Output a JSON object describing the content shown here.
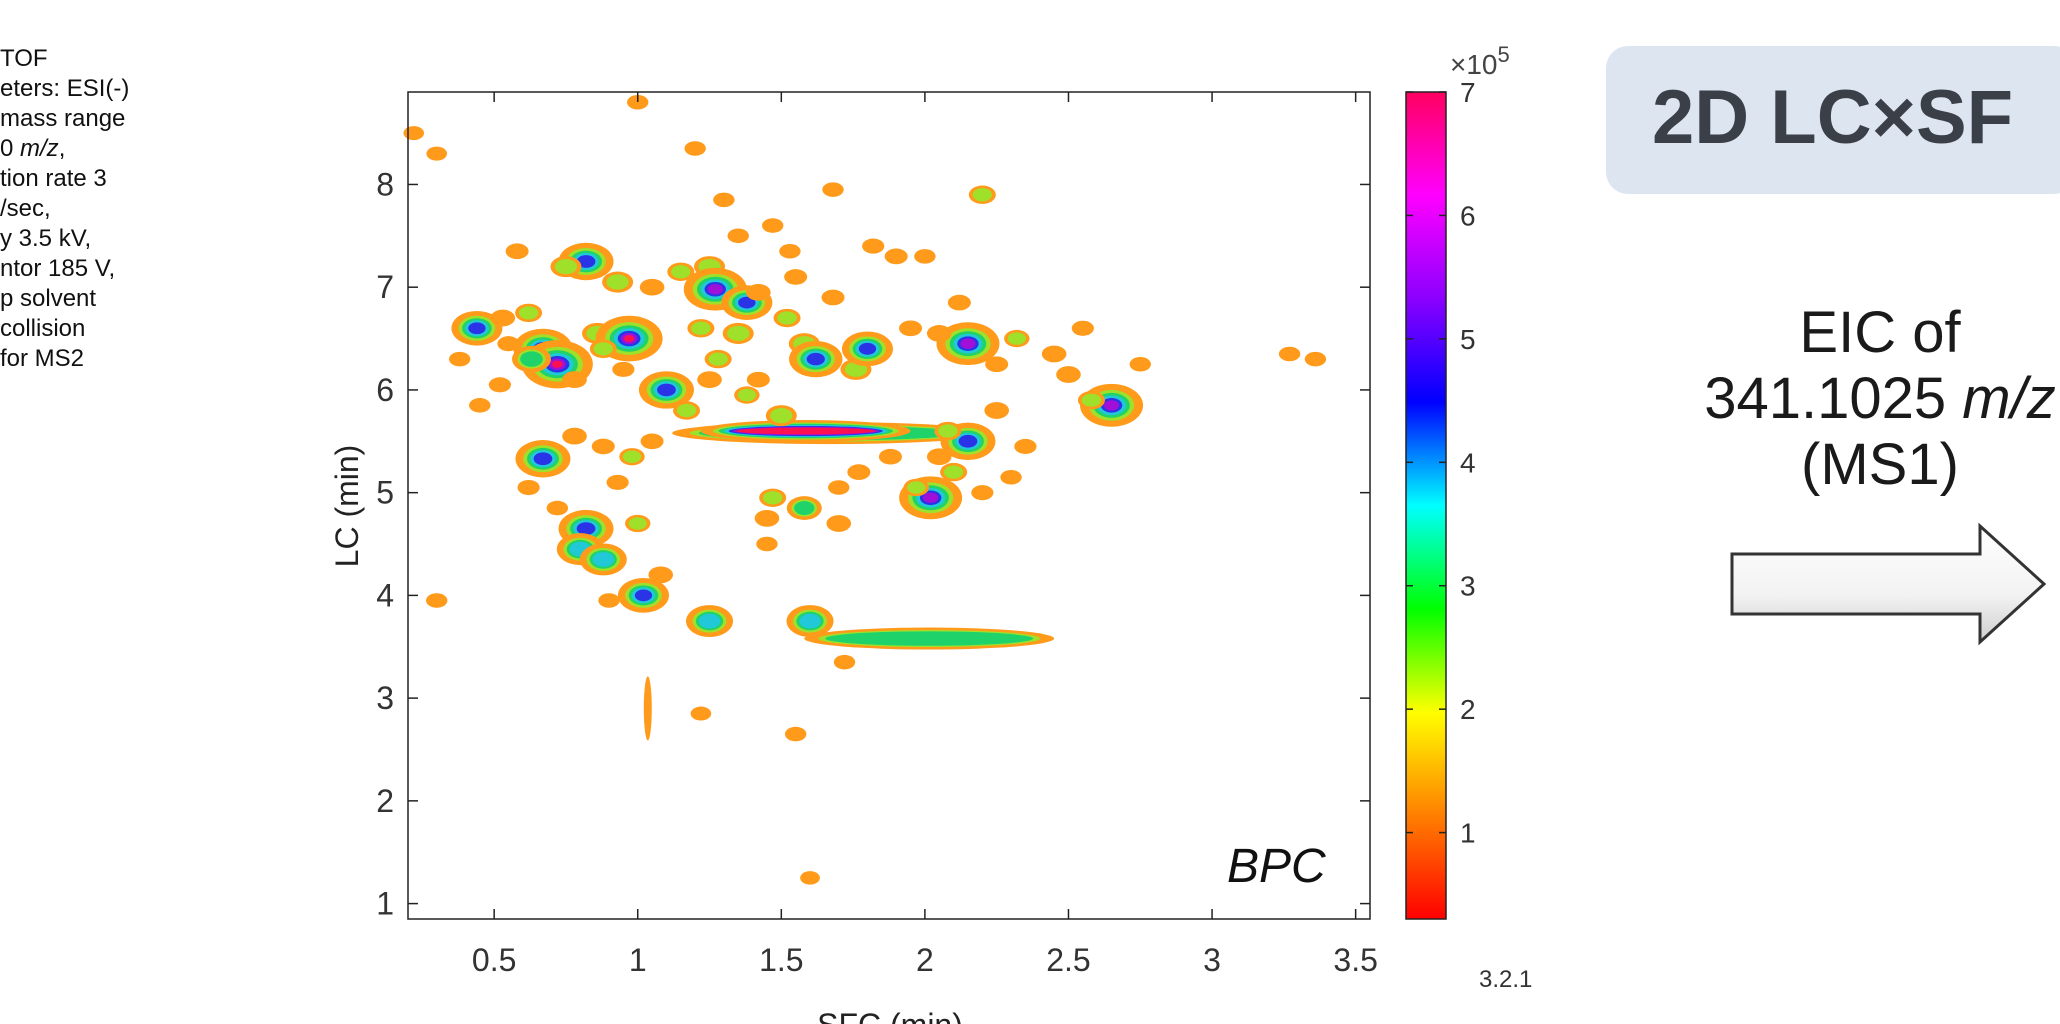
{
  "side_text": {
    "lines": [
      {
        "pre": "TOF",
        "em": "",
        "post": ""
      },
      {
        "pre": "eters: ESI(-)",
        "em": "",
        "post": ""
      },
      {
        "pre": "mass range",
        "em": "",
        "post": ""
      },
      {
        "pre": "0 ",
        "em": "m/z",
        "post": ","
      },
      {
        "pre": "tion rate 3",
        "em": "",
        "post": ""
      },
      {
        "pre": "/sec,",
        "em": "",
        "post": ""
      },
      {
        "pre": "y 3.5 kV,",
        "em": "",
        "post": ""
      },
      {
        "pre": "ntor 185 V,",
        "em": "",
        "post": ""
      },
      {
        "pre": "p solvent",
        "em": "",
        "post": ""
      },
      {
        "pre": "collision",
        "em": "",
        "post": ""
      },
      {
        "pre": "for MS2",
        "em": "",
        "post": ""
      }
    ]
  },
  "banner": {
    "title": "2D LC×SF"
  },
  "eic": {
    "line1": "EIC of",
    "line2_num": "341.1025 ",
    "line2_unit": "m/z",
    "line3": "(MS1)"
  },
  "slide_number": "3.2.1",
  "colorbar": {
    "exponent_prefix": "×10",
    "exponent": "5",
    "ticks": [
      1,
      2,
      3,
      4,
      5,
      6,
      7
    ],
    "range": [
      0.3,
      7
    ],
    "colors": [
      "#ff0000",
      "#ff7f00",
      "#ffff00",
      "#00ff00",
      "#00ffff",
      "#0000ff",
      "#8b00ff",
      "#ff00ff",
      "#ff0060"
    ]
  },
  "chart_data": {
    "type": "heatmap",
    "annotation": "BPC",
    "xlabel": "SFC (min)",
    "ylabel": "LC (min)",
    "xlim": [
      0.2,
      3.55
    ],
    "ylim": [
      0.85,
      8.9
    ],
    "xticks": [
      0.5,
      1,
      1.5,
      2,
      2.5,
      3,
      3.5
    ],
    "yticks": [
      1,
      2,
      3,
      4,
      5,
      6,
      7,
      8
    ],
    "grid": false,
    "spots": [
      {
        "x": 0.44,
        "y": 6.6,
        "i": 4.5
      },
      {
        "x": 0.38,
        "y": 6.3,
        "i": 0.8
      },
      {
        "x": 0.53,
        "y": 6.7,
        "i": 1.2
      },
      {
        "x": 0.62,
        "y": 6.75,
        "i": 1.5
      },
      {
        "x": 0.55,
        "y": 6.45,
        "i": 0.9
      },
      {
        "x": 0.67,
        "y": 6.4,
        "i": 5.5
      },
      {
        "x": 0.72,
        "y": 6.25,
        "i": 7
      },
      {
        "x": 0.63,
        "y": 6.3,
        "i": 3
      },
      {
        "x": 0.78,
        "y": 6.1,
        "i": 1.2
      },
      {
        "x": 0.58,
        "y": 7.35,
        "i": 1
      },
      {
        "x": 0.82,
        "y": 7.25,
        "i": 5
      },
      {
        "x": 0.75,
        "y": 7.2,
        "i": 2
      },
      {
        "x": 0.93,
        "y": 7.05,
        "i": 2
      },
      {
        "x": 0.86,
        "y": 6.55,
        "i": 2
      },
      {
        "x": 0.97,
        "y": 6.5,
        "i": 6.5
      },
      {
        "x": 0.88,
        "y": 6.4,
        "i": 1.5
      },
      {
        "x": 0.95,
        "y": 6.2,
        "i": 0.9
      },
      {
        "x": 1.05,
        "y": 7.0,
        "i": 1.2
      },
      {
        "x": 1.15,
        "y": 7.15,
        "i": 1.5
      },
      {
        "x": 1.25,
        "y": 7.2,
        "i": 2
      },
      {
        "x": 1.27,
        "y": 6.98,
        "i": 6
      },
      {
        "x": 1.22,
        "y": 6.6,
        "i": 1.5
      },
      {
        "x": 1.35,
        "y": 6.55,
        "i": 2
      },
      {
        "x": 1.38,
        "y": 6.85,
        "i": 4.5
      },
      {
        "x": 1.42,
        "y": 6.95,
        "i": 1.2
      },
      {
        "x": 1.52,
        "y": 6.7,
        "i": 1.5
      },
      {
        "x": 1.58,
        "y": 6.45,
        "i": 2
      },
      {
        "x": 1.62,
        "y": 6.3,
        "i": 4.8
      },
      {
        "x": 1.68,
        "y": 6.9,
        "i": 1
      },
      {
        "x": 1.76,
        "y": 6.2,
        "i": 2
      },
      {
        "x": 1.8,
        "y": 6.4,
        "i": 4.5
      },
      {
        "x": 1.55,
        "y": 7.1,
        "i": 1
      },
      {
        "x": 1.28,
        "y": 6.3,
        "i": 1.5
      },
      {
        "x": 1.1,
        "y": 6.0,
        "i": 5
      },
      {
        "x": 1.17,
        "y": 5.8,
        "i": 1.5
      },
      {
        "x": 1.25,
        "y": 6.1,
        "i": 1.2
      },
      {
        "x": 1.38,
        "y": 5.95,
        "i": 1.3
      },
      {
        "x": 1.5,
        "y": 5.75,
        "i": 2
      },
      {
        "x": 1.42,
        "y": 6.1,
        "i": 1
      },
      {
        "x": 2.15,
        "y": 6.45,
        "i": 6
      },
      {
        "x": 2.05,
        "y": 6.55,
        "i": 1.2
      },
      {
        "x": 2.25,
        "y": 6.25,
        "i": 1
      },
      {
        "x": 2.32,
        "y": 6.5,
        "i": 1.3
      },
      {
        "x": 2.45,
        "y": 6.35,
        "i": 1.2
      },
      {
        "x": 2.5,
        "y": 6.15,
        "i": 1.2
      },
      {
        "x": 2.65,
        "y": 5.85,
        "i": 6
      },
      {
        "x": 2.58,
        "y": 5.9,
        "i": 1.5
      },
      {
        "x": 3.27,
        "y": 6.35,
        "i": 0.8
      },
      {
        "x": 3.36,
        "y": 6.3,
        "i": 0.8
      },
      {
        "x": 2.2,
        "y": 7.9,
        "i": 1.5
      },
      {
        "x": 0.67,
        "y": 5.33,
        "i": 5
      },
      {
        "x": 0.78,
        "y": 5.55,
        "i": 1.2
      },
      {
        "x": 0.88,
        "y": 5.45,
        "i": 1
      },
      {
        "x": 0.98,
        "y": 5.35,
        "i": 1.3
      },
      {
        "x": 1.05,
        "y": 5.5,
        "i": 1
      },
      {
        "x": 0.82,
        "y": 4.65,
        "i": 5
      },
      {
        "x": 0.8,
        "y": 4.45,
        "i": 4
      },
      {
        "x": 0.88,
        "y": 4.35,
        "i": 4
      },
      {
        "x": 1.0,
        "y": 4.7,
        "i": 1.3
      },
      {
        "x": 1.02,
        "y": 4.0,
        "i": 4.5
      },
      {
        "x": 1.08,
        "y": 4.2,
        "i": 1.2
      },
      {
        "x": 1.25,
        "y": 3.75,
        "i": 4
      },
      {
        "x": 1.6,
        "y": 3.75,
        "i": 4
      },
      {
        "x": 1.45,
        "y": 4.75,
        "i": 1.2
      },
      {
        "x": 1.47,
        "y": 4.95,
        "i": 1.5
      },
      {
        "x": 1.58,
        "y": 4.85,
        "i": 2.5
      },
      {
        "x": 1.7,
        "y": 4.7,
        "i": 1.2
      },
      {
        "x": 2.02,
        "y": 4.95,
        "i": 6
      },
      {
        "x": 2.1,
        "y": 5.2,
        "i": 1.5
      },
      {
        "x": 1.97,
        "y": 5.05,
        "i": 1.3
      },
      {
        "x": 2.15,
        "y": 5.5,
        "i": 5
      },
      {
        "x": 2.08,
        "y": 5.6,
        "i": 1.5
      },
      {
        "x": 2.25,
        "y": 5.8,
        "i": 1.2
      },
      {
        "x": 2.2,
        "y": 5.0,
        "i": 0.9
      },
      {
        "x": 2.05,
        "y": 5.35,
        "i": 1.2
      },
      {
        "x": 0.45,
        "y": 5.85,
        "i": 0.8
      },
      {
        "x": 0.52,
        "y": 6.05,
        "i": 0.9
      },
      {
        "x": 0.62,
        "y": 5.05,
        "i": 0.9
      },
      {
        "x": 0.72,
        "y": 4.85,
        "i": 0.8
      },
      {
        "x": 0.93,
        "y": 5.1,
        "i": 0.9
      },
      {
        "x": 0.3,
        "y": 3.95,
        "i": 0.8
      },
      {
        "x": 0.9,
        "y": 3.95,
        "i": 0.8
      },
      {
        "x": 1.45,
        "y": 4.5,
        "i": 0.8
      },
      {
        "x": 1.72,
        "y": 3.35,
        "i": 0.8
      },
      {
        "x": 1.55,
        "y": 2.65,
        "i": 0.8
      },
      {
        "x": 1.22,
        "y": 2.85,
        "i": 0.7
      },
      {
        "x": 1.0,
        "y": 8.8,
        "i": 0.8
      },
      {
        "x": 1.2,
        "y": 8.35,
        "i": 0.8
      },
      {
        "x": 1.47,
        "y": 7.6,
        "i": 0.8
      },
      {
        "x": 1.53,
        "y": 7.35,
        "i": 0.8
      },
      {
        "x": 1.35,
        "y": 7.5,
        "i": 0.8
      },
      {
        "x": 1.82,
        "y": 7.4,
        "i": 0.9
      },
      {
        "x": 1.9,
        "y": 7.3,
        "i": 1
      },
      {
        "x": 2.0,
        "y": 7.3,
        "i": 0.8
      },
      {
        "x": 1.68,
        "y": 7.95,
        "i": 0.8
      },
      {
        "x": 1.3,
        "y": 7.85,
        "i": 0.8
      },
      {
        "x": 0.22,
        "y": 8.5,
        "i": 0.7
      },
      {
        "x": 0.3,
        "y": 8.3,
        "i": 0.7
      },
      {
        "x": 1.77,
        "y": 5.2,
        "i": 1
      },
      {
        "x": 1.88,
        "y": 5.35,
        "i": 1
      },
      {
        "x": 1.7,
        "y": 5.05,
        "i": 0.8
      },
      {
        "x": 2.35,
        "y": 5.45,
        "i": 0.9
      },
      {
        "x": 2.3,
        "y": 5.15,
        "i": 0.8
      },
      {
        "x": 2.12,
        "y": 6.85,
        "i": 1
      },
      {
        "x": 1.95,
        "y": 6.6,
        "i": 1
      },
      {
        "x": 2.55,
        "y": 6.6,
        "i": 0.9
      },
      {
        "x": 2.75,
        "y": 6.25,
        "i": 0.8
      },
      {
        "x": 1.6,
        "y": 1.25,
        "i": 0.6
      }
    ],
    "ridges": [
      {
        "x1": 1.12,
        "x2": 2.22,
        "y": 5.58,
        "i": 3,
        "label": "main-ridge"
      },
      {
        "x1": 1.22,
        "x2": 1.95,
        "y": 5.6,
        "i": 7,
        "label": "main-ridge-core"
      },
      {
        "x1": 1.58,
        "x2": 2.45,
        "y": 3.58,
        "i": 2.2,
        "label": "low-ridge"
      },
      {
        "x1": 1.02,
        "x2": 1.05,
        "y": 2.9,
        "i": 0.9,
        "label": "vertical-streak"
      }
    ]
  }
}
